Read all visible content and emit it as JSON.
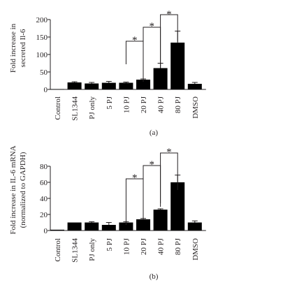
{
  "figure": {
    "panels": [
      {
        "panel_label": "(a)",
        "ylabel_lines": [
          "Fold increase in",
          "secreted Il-6"
        ],
        "yticks": [
          "0",
          "50",
          "100",
          "150",
          "200"
        ]
      },
      {
        "panel_label": "(b)",
        "ylabel_lines": [
          "Fold increase in IL-6 mRNA",
          "(normalized to GAPDH)"
        ],
        "yticks": [
          "0",
          "20",
          "40",
          "60",
          "80"
        ]
      }
    ]
  },
  "chart_data": [
    {
      "type": "bar",
      "title": "",
      "panel_label": "(a)",
      "ylabel": "Fold increase in secreted Il-6",
      "xlabel": "",
      "ylim": [
        0,
        200
      ],
      "yticks": [
        0,
        50,
        100,
        150,
        200
      ],
      "grid": false,
      "bar_color": "#000000",
      "categories": [
        "Control",
        "SL1344",
        "PJ only",
        "5 PJ",
        "10 PJ",
        "20 PJ",
        "40 PJ",
        "80 PJ",
        "DMSO"
      ],
      "values": [
        1,
        20,
        17,
        19,
        19,
        28,
        61,
        134,
        16
      ],
      "errors": [
        0,
        2,
        3,
        4,
        2,
        2,
        14,
        33,
        4
      ],
      "significance": [
        {
          "from": "10 PJ",
          "to": "20 PJ",
          "label": "*"
        },
        {
          "from": "20 PJ",
          "to": "40 PJ",
          "label": "*"
        },
        {
          "from": "40 PJ",
          "to": "80 PJ",
          "label": "*"
        }
      ]
    },
    {
      "type": "bar",
      "title": "",
      "panel_label": "(b)",
      "ylabel": "Fold increase in IL-6 mRNA (normalized to GAPDH)",
      "xlabel": "",
      "ylim": [
        0,
        80
      ],
      "yticks": [
        0,
        20,
        40,
        60,
        80
      ],
      "grid": false,
      "bar_color": "#000000",
      "categories": [
        "Control",
        "SL1344",
        "PJ only",
        "5 PJ",
        "10 PJ",
        "20 PJ",
        "40 PJ",
        "80 PJ",
        "DMSO"
      ],
      "values": [
        1,
        10,
        10,
        7,
        10,
        14,
        26,
        60,
        10
      ],
      "errors": [
        0,
        0,
        1,
        3,
        1,
        1,
        1,
        9,
        2
      ],
      "significance": [
        {
          "from": "10 PJ",
          "to": "20 PJ",
          "label": "*"
        },
        {
          "from": "20 PJ",
          "to": "40 PJ",
          "label": "*"
        },
        {
          "from": "40 PJ",
          "to": "80 PJ",
          "label": "*"
        }
      ]
    }
  ]
}
